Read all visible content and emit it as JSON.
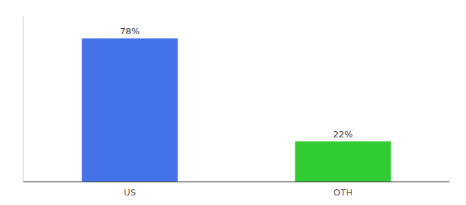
{
  "chart_data": {
    "type": "bar",
    "categories": [
      "US",
      "OTH"
    ],
    "values": [
      78,
      22
    ],
    "value_labels": [
      "78%",
      "22%"
    ],
    "colors": [
      "#4472e8",
      "#33cc33"
    ],
    "ylim": [
      0,
      90
    ],
    "yticks": [],
    "grid": false,
    "data_labels": true,
    "tick_labels": "x"
  }
}
